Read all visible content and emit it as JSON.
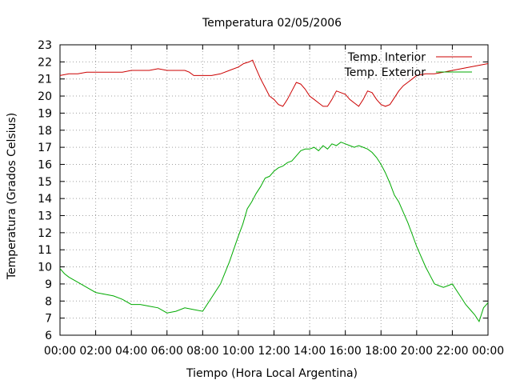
{
  "chart_data": {
    "type": "line",
    "title": "Temperatura 02/05/2006",
    "xlabel": "Tiempo (Hora Local Argentina)",
    "ylabel": "Temperatura (Grados Celsius)",
    "xlim": [
      0,
      24
    ],
    "ylim": [
      6,
      23
    ],
    "grid": true,
    "legend_position": "top-right",
    "x_unit": "hours",
    "x_ticks": [
      {
        "value": 0,
        "label": "00:00"
      },
      {
        "value": 2,
        "label": "02:00"
      },
      {
        "value": 4,
        "label": "04:00"
      },
      {
        "value": 6,
        "label": "06:00"
      },
      {
        "value": 8,
        "label": "08:00"
      },
      {
        "value": 10,
        "label": "10:00"
      },
      {
        "value": 12,
        "label": "12:00"
      },
      {
        "value": 14,
        "label": "14:00"
      },
      {
        "value": 16,
        "label": "16:00"
      },
      {
        "value": 18,
        "label": "18:00"
      },
      {
        "value": 20,
        "label": "20:00"
      },
      {
        "value": 22,
        "label": "22:00"
      },
      {
        "value": 24,
        "label": "00:00"
      }
    ],
    "y_ticks": [
      {
        "value": 6,
        "label": "6"
      },
      {
        "value": 7,
        "label": "7"
      },
      {
        "value": 8,
        "label": "8"
      },
      {
        "value": 9,
        "label": "9"
      },
      {
        "value": 10,
        "label": "10"
      },
      {
        "value": 11,
        "label": "11"
      },
      {
        "value": 12,
        "label": "12"
      },
      {
        "value": 13,
        "label": "13"
      },
      {
        "value": 14,
        "label": "14"
      },
      {
        "value": 15,
        "label": "15"
      },
      {
        "value": 16,
        "label": "16"
      },
      {
        "value": 17,
        "label": "17"
      },
      {
        "value": 18,
        "label": "18"
      },
      {
        "value": 19,
        "label": "19"
      },
      {
        "value": 20,
        "label": "20"
      },
      {
        "value": 21,
        "label": "21"
      },
      {
        "value": 22,
        "label": "22"
      },
      {
        "value": 23,
        "label": "23"
      }
    ],
    "series": [
      {
        "name": "Temp. Interior",
        "color": "#cc0000",
        "x": [
          0,
          0.5,
          1,
          1.5,
          2,
          2.5,
          3,
          3.5,
          4,
          4.5,
          5,
          5.5,
          6,
          6.5,
          7,
          7.25,
          7.5,
          8,
          8.5,
          9,
          9.5,
          10,
          10.3,
          10.6,
          10.8,
          11,
          11.25,
          11.5,
          11.75,
          12,
          12.25,
          12.5,
          12.75,
          13,
          13.25,
          13.5,
          13.75,
          14,
          14.25,
          14.5,
          14.75,
          15,
          15.25,
          15.5,
          15.75,
          16,
          16.25,
          16.5,
          16.75,
          17,
          17.25,
          17.5,
          17.75,
          18,
          18.25,
          18.5,
          18.75,
          19,
          19.25,
          19.5,
          19.75,
          20,
          20.5,
          21,
          21.5,
          22,
          22.5,
          23,
          23.5,
          24
        ],
        "y": [
          21.2,
          21.3,
          21.3,
          21.4,
          21.4,
          21.4,
          21.4,
          21.4,
          21.5,
          21.5,
          21.5,
          21.6,
          21.5,
          21.5,
          21.5,
          21.4,
          21.2,
          21.2,
          21.2,
          21.3,
          21.5,
          21.7,
          21.9,
          22.0,
          22.1,
          21.6,
          21.0,
          20.5,
          20.0,
          19.8,
          19.5,
          19.4,
          19.8,
          20.3,
          20.8,
          20.7,
          20.4,
          20.0,
          19.8,
          19.6,
          19.4,
          19.4,
          19.8,
          20.3,
          20.2,
          20.1,
          19.8,
          19.6,
          19.4,
          19.8,
          20.3,
          20.2,
          19.8,
          19.5,
          19.4,
          19.5,
          19.9,
          20.3,
          20.6,
          20.8,
          21.0,
          21.2,
          21.3,
          21.3,
          21.4,
          21.5,
          21.6,
          21.7,
          21.8,
          21.9
        ]
      },
      {
        "name": "Temp. Exterior",
        "color": "#00aa00",
        "x": [
          0,
          0.25,
          0.5,
          1,
          1.5,
          2,
          2.5,
          3,
          3.5,
          4,
          4.5,
          5,
          5.5,
          6,
          6.5,
          7,
          7.5,
          8,
          8.5,
          9,
          9.5,
          10,
          10.25,
          10.5,
          10.75,
          11,
          11.25,
          11.5,
          11.75,
          12,
          12.25,
          12.5,
          12.75,
          13,
          13.25,
          13.5,
          13.75,
          14,
          14.25,
          14.5,
          14.75,
          15,
          15.25,
          15.5,
          15.75,
          16,
          16.25,
          16.5,
          16.75,
          17,
          17.25,
          17.5,
          17.75,
          18,
          18.25,
          18.5,
          18.75,
          19,
          19.25,
          19.5,
          19.75,
          20,
          20.25,
          20.5,
          20.75,
          21,
          21.25,
          21.5,
          21.75,
          22,
          22.25,
          22.5,
          22.75,
          23,
          23.25,
          23.5,
          23.75,
          24
        ],
        "y": [
          9.9,
          9.6,
          9.4,
          9.1,
          8.8,
          8.5,
          8.4,
          8.3,
          8.1,
          7.8,
          7.8,
          7.7,
          7.6,
          7.3,
          7.4,
          7.6,
          7.5,
          7.4,
          8.2,
          9.0,
          10.3,
          11.8,
          12.5,
          13.4,
          13.8,
          14.3,
          14.7,
          15.2,
          15.3,
          15.6,
          15.8,
          15.9,
          16.1,
          16.2,
          16.5,
          16.8,
          16.9,
          16.9,
          17.0,
          16.8,
          17.1,
          16.9,
          17.2,
          17.1,
          17.3,
          17.2,
          17.1,
          17.0,
          17.1,
          17.0,
          16.9,
          16.7,
          16.4,
          16.0,
          15.5,
          14.9,
          14.2,
          13.8,
          13.2,
          12.6,
          11.9,
          11.2,
          10.6,
          10.0,
          9.5,
          9.0,
          8.9,
          8.8,
          8.9,
          9.0,
          8.6,
          8.2,
          7.8,
          7.5,
          7.2,
          6.8,
          7.6,
          7.9
        ]
      }
    ]
  }
}
